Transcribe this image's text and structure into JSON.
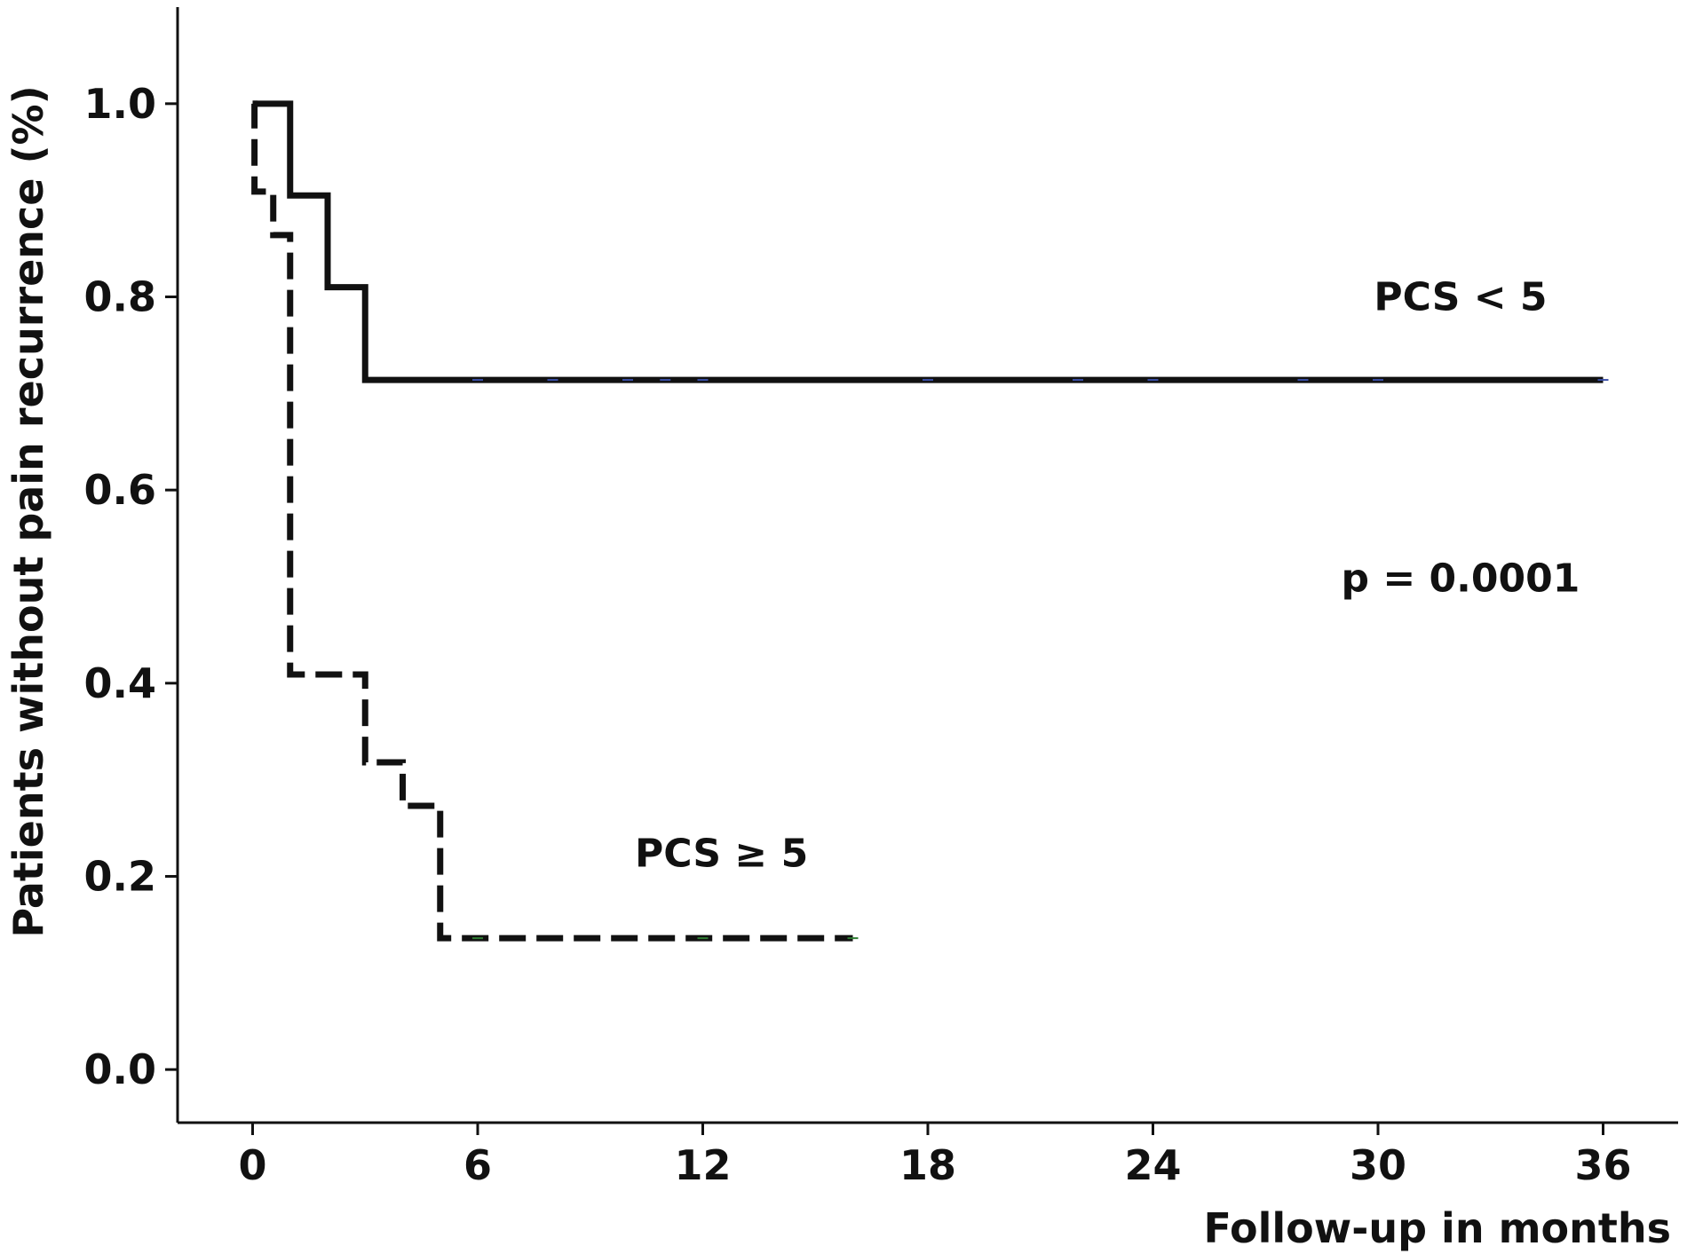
{
  "chart_data": {
    "type": "line",
    "subtype": "kaplan-meier-step",
    "xlabel": "Follow-up in months",
    "ylabel": "Patients without pain recurrence (%)",
    "xlim": [
      -2,
      38
    ],
    "ylim": [
      -0.055,
      1.1
    ],
    "xticks": [
      0,
      6,
      12,
      18,
      24,
      30,
      36
    ],
    "yticks": [
      0.0,
      0.2,
      0.4,
      0.6,
      0.8,
      1.0
    ],
    "ytick_labels": [
      "0.0",
      "0.2",
      "0.4",
      "0.6",
      "0.8",
      "1.0"
    ],
    "grid": false,
    "series": [
      {
        "style": "solid",
        "color": "#111111",
        "steps": [
          {
            "x": 0,
            "y": 1.0
          },
          {
            "x": 1,
            "y": 0.905
          },
          {
            "x": 2,
            "y": 0.81
          },
          {
            "x": 3,
            "y": 0.714
          }
        ],
        "end_x": 36,
        "censor_x": [
          6,
          8,
          10,
          11,
          12,
          18,
          22,
          24,
          28,
          30,
          36
        ],
        "censor_color": "#3a4fa8"
      },
      {
        "style": "dashed",
        "color": "#111111",
        "steps": [
          {
            "x": 0,
            "y": 1.0
          },
          {
            "x": 0.05,
            "y": 0.909
          },
          {
            "x": 0.55,
            "y": 0.864
          },
          {
            "x": 1,
            "y": 0.409
          },
          {
            "x": 3,
            "y": 0.318
          },
          {
            "x": 4,
            "y": 0.273
          },
          {
            "x": 5,
            "y": 0.136
          }
        ],
        "end_x": 16,
        "censor_x": [
          6,
          12,
          16
        ],
        "censor_color": "#2e7d32"
      }
    ],
    "annotations": [
      {
        "id": "pcs-low",
        "text": "PCS < 5",
        "x": 32.2,
        "y": 0.786
      },
      {
        "id": "pcs-high",
        "text": "PCS ≥ 5",
        "x": 12.5,
        "y": 0.21
      },
      {
        "id": "p-value",
        "text": "p = 0.0001",
        "x": 32.2,
        "y": 0.495
      }
    ]
  }
}
